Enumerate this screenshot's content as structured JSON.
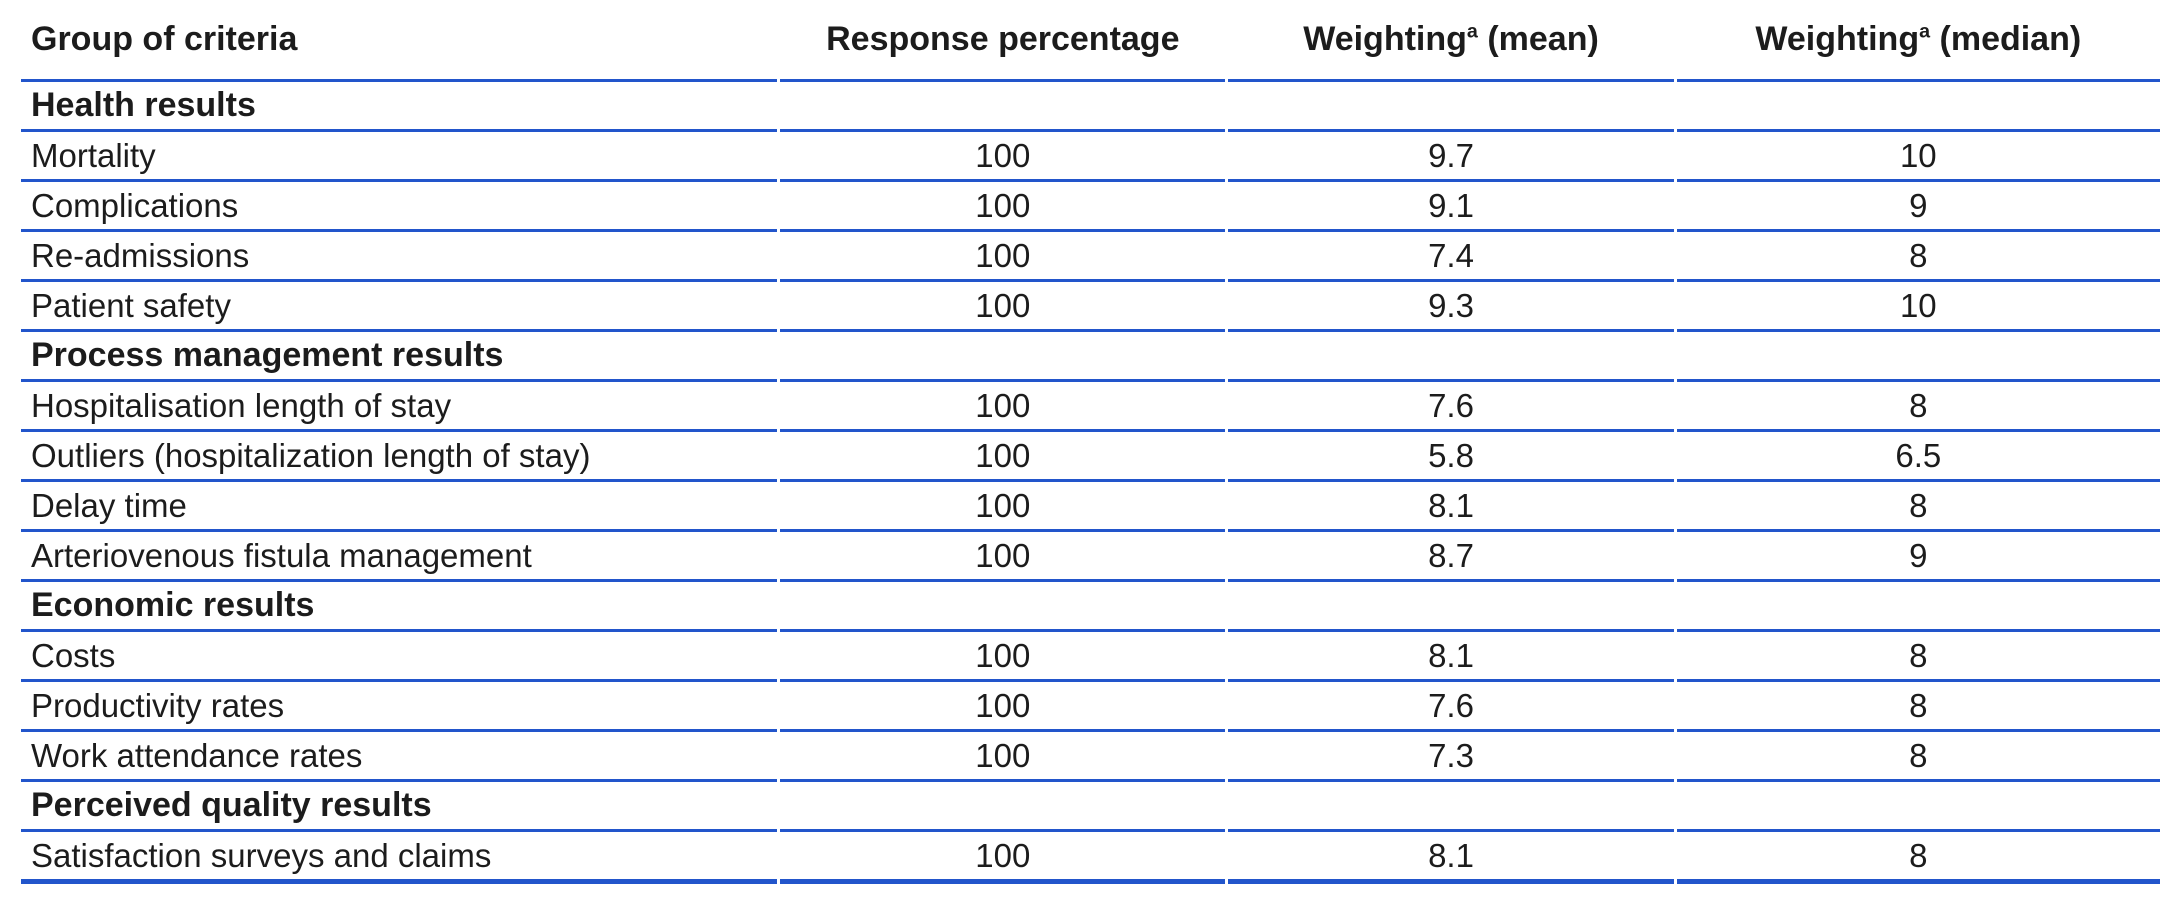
{
  "table": {
    "columns": [
      {
        "label": "Group of criteria",
        "sup": "",
        "suffix": ""
      },
      {
        "label": "Response percentage",
        "sup": "",
        "suffix": ""
      },
      {
        "label": "Weighting",
        "sup": "a",
        "suffix": " (mean)"
      },
      {
        "label": "Weighting",
        "sup": "a",
        "suffix": " (median)"
      }
    ],
    "rows": [
      {
        "type": "section",
        "label": "Health results"
      },
      {
        "type": "item",
        "label": "Mortality",
        "response": "100",
        "mean": "9.7",
        "median": "10"
      },
      {
        "type": "item",
        "label": "Complications",
        "response": "100",
        "mean": "9.1",
        "median": "9"
      },
      {
        "type": "item",
        "label": "Re-admissions",
        "response": "100",
        "mean": "7.4",
        "median": "8"
      },
      {
        "type": "item",
        "label": "Patient safety",
        "response": "100",
        "mean": "9.3",
        "median": "10"
      },
      {
        "type": "section",
        "label": "Process management results"
      },
      {
        "type": "item",
        "label": "Hospitalisation length of stay",
        "response": "100",
        "mean": "7.6",
        "median": "8"
      },
      {
        "type": "item",
        "label": "Outliers (hospitalization length of stay)",
        "response": "100",
        "mean": "5.8",
        "median": "6.5"
      },
      {
        "type": "item",
        "label": "Delay time",
        "response": "100",
        "mean": "8.1",
        "median": "8"
      },
      {
        "type": "item",
        "label": "Arteriovenous fistula management",
        "response": "100",
        "mean": "8.7",
        "median": "9"
      },
      {
        "type": "section",
        "label": "Economic results"
      },
      {
        "type": "item",
        "label": "Costs",
        "response": "100",
        "mean": "8.1",
        "median": "8"
      },
      {
        "type": "item",
        "label": "Productivity rates",
        "response": "100",
        "mean": "7.6",
        "median": "8"
      },
      {
        "type": "item",
        "label": "Work attendance rates",
        "response": "100",
        "mean": "7.3",
        "median": "8"
      },
      {
        "type": "section",
        "label": "Perceived quality results"
      },
      {
        "type": "item",
        "label": "Satisfaction surveys and claims",
        "response": "100",
        "mean": "8.1",
        "median": "8"
      }
    ]
  },
  "colors": {
    "rule_blue": "#2255cb",
    "text": "#1c1c1c"
  }
}
